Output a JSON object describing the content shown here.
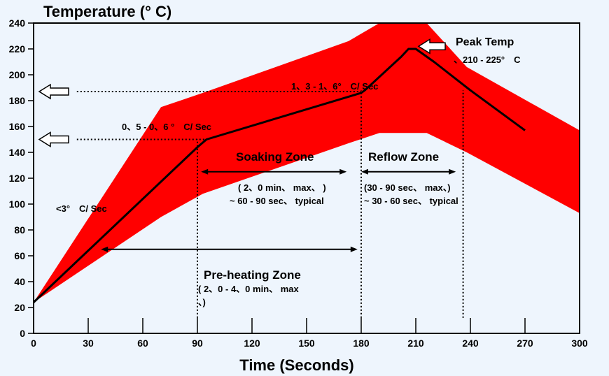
{
  "chart_data": {
    "type": "line",
    "title": "Temperature (° C)",
    "xlabel": "Time (Seconds)",
    "ylabel": "",
    "xlim": [
      0,
      300
    ],
    "ylim": [
      0,
      240
    ],
    "xticks": [
      0,
      30,
      60,
      90,
      120,
      150,
      180,
      210,
      240,
      270,
      300
    ],
    "yticks": [
      0,
      20,
      40,
      60,
      80,
      100,
      120,
      140,
      160,
      180,
      200,
      220,
      240
    ],
    "colors": {
      "band": "#ff0000",
      "line": "#000000",
      "background": "#eef5fd"
    },
    "series": [
      {
        "x": [
          0,
          90,
          95,
          180,
          182,
          202,
          206,
          210,
          220,
          240,
          270
        ],
        "y": [
          24,
          144,
          150,
          186,
          188,
          214,
          220,
          220,
          210,
          188,
          157
        ]
      }
    ],
    "band": [
      [
        0,
        24,
        24
      ],
      [
        70,
        175,
        90
      ],
      [
        93,
        186,
        108
      ],
      [
        173,
        226,
        147
      ],
      [
        190,
        240,
        155
      ],
      [
        200,
        240,
        155
      ],
      [
        210,
        240,
        155
      ],
      [
        216,
        240,
        155
      ],
      [
        238,
        206,
        140
      ],
      [
        300,
        157,
        93
      ]
    ],
    "guides": [
      {
        "x": 90,
        "y0": 12,
        "y1": 150
      },
      {
        "x": 180,
        "y0": 12,
        "y1": 188
      },
      {
        "x": 236,
        "y0": 12,
        "y1": 188
      }
    ],
    "hlines": [
      {
        "x0": 3,
        "x1": 180,
        "y": 187
      },
      {
        "x0": 3,
        "x1": 94,
        "y": 150
      }
    ],
    "ranges": [
      {
        "x0": 37,
        "x1": 178,
        "y": 65
      },
      {
        "x0": 92,
        "x1": 172,
        "y": 125
      },
      {
        "x0": 180,
        "x1": 232,
        "y": 125
      }
    ],
    "annotations": {
      "ramp1": "<3°　C/ Sec",
      "ramp2": "0、5 - 0、6 °　C/ Sec",
      "ramp3": "1、3 - 1、6°　C/ Sec",
      "peak_title": "Peak Temp",
      "peak_range": "、210 - 225°　C",
      "soak_title": "Soaking Zone",
      "soak_line1": "( 2、0 min、 max、 )",
      "soak_line2": "~ 60 - 90 sec、 typical",
      "reflow_title": "Reflow Zone",
      "reflow_line1": "(30 - 90 sec、 max、)",
      "reflow_line2": "~ 30 - 60 sec、 typical",
      "preheat_title": "Pre-heating Zone",
      "preheat_line1": "( 2、0 - 4、0 min、 max",
      "preheat_line2": "、)"
    }
  }
}
